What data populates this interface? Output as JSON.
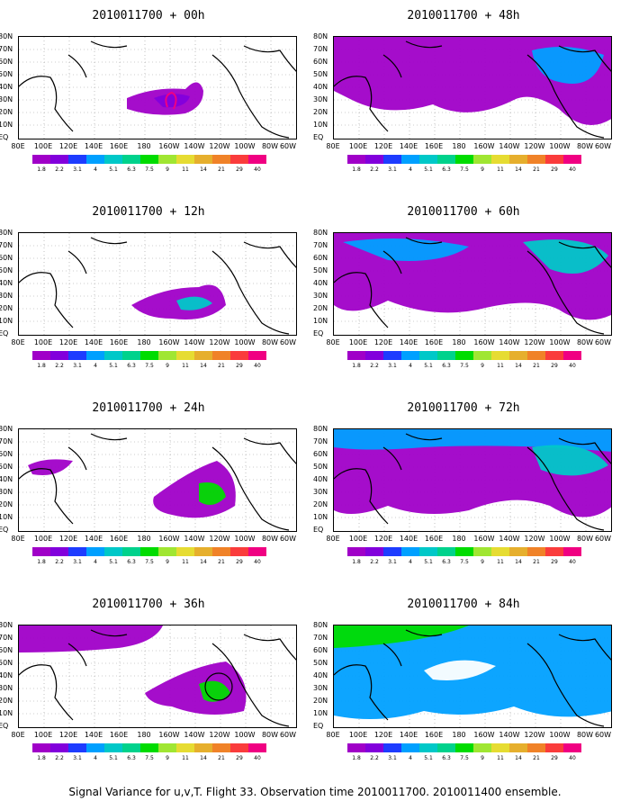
{
  "caption": "Signal Variance for u,v,T. Flight 33. Observation time 2010011700. 2010011400 ensemble.",
  "lat_labels": [
    "80N",
    "70N",
    "60N",
    "50N",
    "40N",
    "30N",
    "20N",
    "10N",
    "EQ"
  ],
  "lon_labels": [
    "80E",
    "100E",
    "120E",
    "140E",
    "160E",
    "180",
    "160W",
    "140W",
    "120W",
    "100W",
    "80W",
    "60W"
  ],
  "colorbar": {
    "labels": [
      "1.8",
      "2.2",
      "3.1",
      "4",
      "5.1",
      "6.3",
      "7.5",
      "9",
      "11",
      "14",
      "21",
      "29",
      "40"
    ],
    "colors": [
      "#a000c8",
      "#8200dc",
      "#1e3cff",
      "#00a0ff",
      "#00c8c8",
      "#00d28c",
      "#00dc00",
      "#a0e632",
      "#e6dc32",
      "#e6af2d",
      "#f08228",
      "#fa3c3c",
      "#f00082"
    ]
  },
  "panels": [
    {
      "title": "2010011700 + 00h"
    },
    {
      "title": "2010011700 + 48h"
    },
    {
      "title": "2010011700 + 12h"
    },
    {
      "title": "2010011700 + 60h"
    },
    {
      "title": "2010011700 + 24h"
    },
    {
      "title": "2010011700 + 72h"
    },
    {
      "title": "2010011700 + 36h"
    },
    {
      "title": "2010011700 + 84h"
    }
  ]
}
